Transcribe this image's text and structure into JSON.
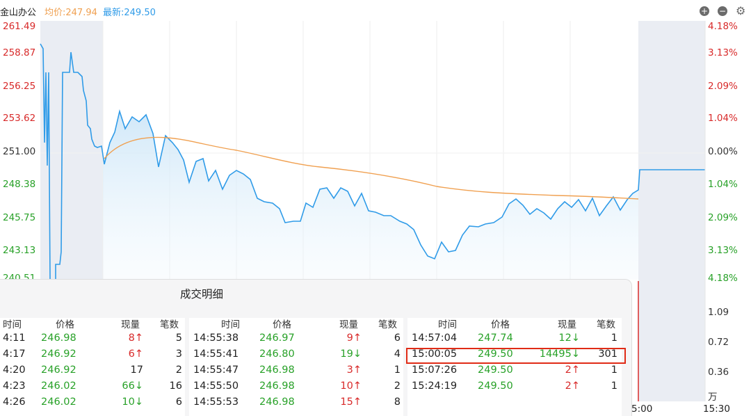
{
  "header": {
    "stock_name": "金山办公",
    "avg_label": "均价:247.94",
    "last_label": "最新:249.50",
    "buttons": [
      "plus-icon",
      "minus-icon",
      "gear-icon"
    ]
  },
  "price_axis": [
    "261.49",
    "258.87",
    "256.25",
    "253.62",
    "251.00",
    "248.38",
    "245.75",
    "243.13",
    "240.51"
  ],
  "pct_axis": [
    "4.18%",
    "3.13%",
    "2.09%",
    "1.04%",
    "0.00%",
    "1.04%",
    "2.09%",
    "3.13%",
    "4.18%"
  ],
  "volume_axis": [
    "1.09",
    "0.72",
    "0.36",
    "万"
  ],
  "time_axis": [
    "5:00",
    "15:30"
  ],
  "panel": {
    "title": "成交明细",
    "headers": {
      "time": "时间",
      "price": "价格",
      "volume": "现量",
      "count": "笔数"
    },
    "col1": [
      {
        "time": "4:11",
        "price": "246.98",
        "vol": "8↑",
        "dir": "red",
        "cnt": "5"
      },
      {
        "time": "4:17",
        "price": "246.92",
        "vol": "6↑",
        "dir": "red",
        "cnt": "3"
      },
      {
        "time": "4:20",
        "price": "246.92",
        "vol": "17",
        "dir": "black",
        "cnt": "2"
      },
      {
        "time": "4:23",
        "price": "246.02",
        "vol": "66↓",
        "dir": "green",
        "cnt": "16"
      },
      {
        "time": "4:26",
        "price": "246.02",
        "vol": "10↓",
        "dir": "green",
        "cnt": "6"
      }
    ],
    "col2": [
      {
        "time": "14:55:38",
        "price": "246.97",
        "vol": "9↑",
        "dir": "red",
        "cnt": "6"
      },
      {
        "time": "14:55:41",
        "price": "246.80",
        "vol": "19↓",
        "dir": "green",
        "cnt": "4"
      },
      {
        "time": "14:55:47",
        "price": "246.98",
        "vol": "3↑",
        "dir": "red",
        "cnt": "1"
      },
      {
        "time": "14:55:50",
        "price": "246.98",
        "vol": "10↑",
        "dir": "red",
        "cnt": "2"
      },
      {
        "time": "14:55:53",
        "price": "246.98",
        "vol": "15↑",
        "dir": "red",
        "cnt": "8"
      }
    ],
    "col3": [
      {
        "time": "14:57:04",
        "price": "247.74",
        "vol": "12↓",
        "dir": "green",
        "cnt": "1"
      },
      {
        "time": "15:00:05",
        "price": "249.50",
        "vol": "14495↓",
        "dir": "green",
        "cnt": "301"
      },
      {
        "time": "15:07:26",
        "price": "249.50",
        "vol": "2↑",
        "dir": "red",
        "cnt": "1"
      },
      {
        "time": "15:24:19",
        "price": "249.50",
        "vol": "2↑",
        "dir": "red",
        "cnt": "1"
      }
    ]
  },
  "colors": {
    "up": "#d82a2a",
    "down": "#28a128",
    "price_line": "#2f9be8",
    "avg_line": "#f0a050",
    "highlight": "#e02b16"
  }
}
